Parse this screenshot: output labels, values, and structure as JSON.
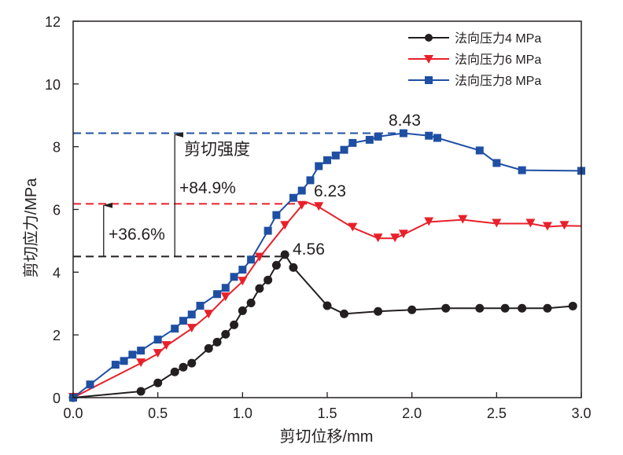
{
  "chart_data": {
    "type": "line",
    "title": "",
    "xlabel": "剪切位移/mm",
    "ylabel": "剪切应力/MPa",
    "xlim": [
      0,
      3.0
    ],
    "ylim": [
      0,
      12
    ],
    "xticks": [
      0.0,
      0.5,
      1.0,
      1.5,
      2.0,
      2.5,
      3.0
    ],
    "xtick_labels": [
      "0.0",
      "0.5",
      "1.0",
      "1.5",
      "2.0",
      "2.5",
      "3.0"
    ],
    "yticks": [
      0,
      2,
      4,
      6,
      8,
      10,
      12
    ],
    "ytick_labels": [
      "0",
      "2",
      "4",
      "6",
      "8",
      "10",
      "12"
    ],
    "grid": false,
    "legend_position": "top-right",
    "series": [
      {
        "name": "法向压力4 MPa",
        "color": "#231f20",
        "marker": "circle",
        "x": [
          0,
          0.4,
          0.5,
          0.6,
          0.65,
          0.7,
          0.8,
          0.85,
          0.9,
          0.95,
          1.0,
          1.05,
          1.1,
          1.15,
          1.2,
          1.25,
          1.3,
          1.5,
          1.6,
          1.8,
          2.0,
          2.2,
          2.4,
          2.55,
          2.65,
          2.8,
          2.95
        ],
        "y": [
          0,
          0.2,
          0.47,
          0.82,
          0.97,
          1.1,
          1.57,
          1.77,
          2.02,
          2.32,
          2.77,
          3.02,
          3.48,
          3.75,
          4.22,
          4.56,
          4.15,
          2.93,
          2.67,
          2.75,
          2.8,
          2.85,
          2.85,
          2.85,
          2.85,
          2.85,
          2.92
        ]
      },
      {
        "name": "法向压力6 MPa",
        "color": "#e8202a",
        "marker": "triangle-down",
        "x": [
          0,
          0.4,
          0.5,
          0.55,
          0.7,
          0.8,
          0.9,
          1.0,
          1.1,
          1.25,
          1.35,
          1.45,
          1.65,
          1.8,
          1.9,
          1.95,
          2.1,
          2.3,
          2.5,
          2.7,
          2.8,
          2.9
        ],
        "y": [
          0,
          1.1,
          1.4,
          1.65,
          2.2,
          2.65,
          3.2,
          3.7,
          4.47,
          5.48,
          6.12,
          6.08,
          5.42,
          5.08,
          5.08,
          5.2,
          5.6,
          5.67,
          5.55,
          5.55,
          5.45,
          5.48
        ],
        "line_end": [
          3.0,
          5.47
        ],
        "peak": [
          1.38,
          6.23
        ]
      },
      {
        "name": "法向压力8 MPa",
        "color": "#1f4fa3",
        "marker": "square",
        "x": [
          0,
          0.1,
          0.25,
          0.3,
          0.35,
          0.4,
          0.5,
          0.6,
          0.65,
          0.7,
          0.75,
          0.85,
          0.9,
          0.95,
          1.0,
          1.05,
          1.15,
          1.2,
          1.3,
          1.35,
          1.4,
          1.45,
          1.5,
          1.55,
          1.6,
          1.65,
          1.75,
          1.8,
          1.95,
          2.1,
          2.15,
          2.4,
          2.5,
          2.65,
          3.0
        ],
        "y": [
          0,
          0.42,
          1.05,
          1.17,
          1.37,
          1.5,
          1.85,
          2.2,
          2.45,
          2.65,
          2.93,
          3.3,
          3.5,
          3.85,
          4.08,
          4.4,
          5.32,
          5.82,
          6.37,
          6.6,
          6.93,
          7.38,
          7.57,
          7.72,
          7.9,
          8.12,
          8.22,
          8.32,
          8.43,
          8.35,
          8.28,
          7.88,
          7.48,
          7.25,
          7.23
        ]
      }
    ],
    "reference_lines": [
      {
        "y": 4.5,
        "color": "#231f20",
        "x_end": 1.25
      },
      {
        "y": 6.18,
        "color": "#e8202a",
        "x_end": 1.38
      },
      {
        "y": 8.43,
        "color": "#1f4fa3",
        "x_end": 1.95
      }
    ],
    "annotations": {
      "peak_4": "4.56",
      "peak_6": "6.23",
      "peak_8": "8.43",
      "strength_label": "剪切强度",
      "increase_8": "+84.9%",
      "increase_6": "+36.6%"
    }
  }
}
